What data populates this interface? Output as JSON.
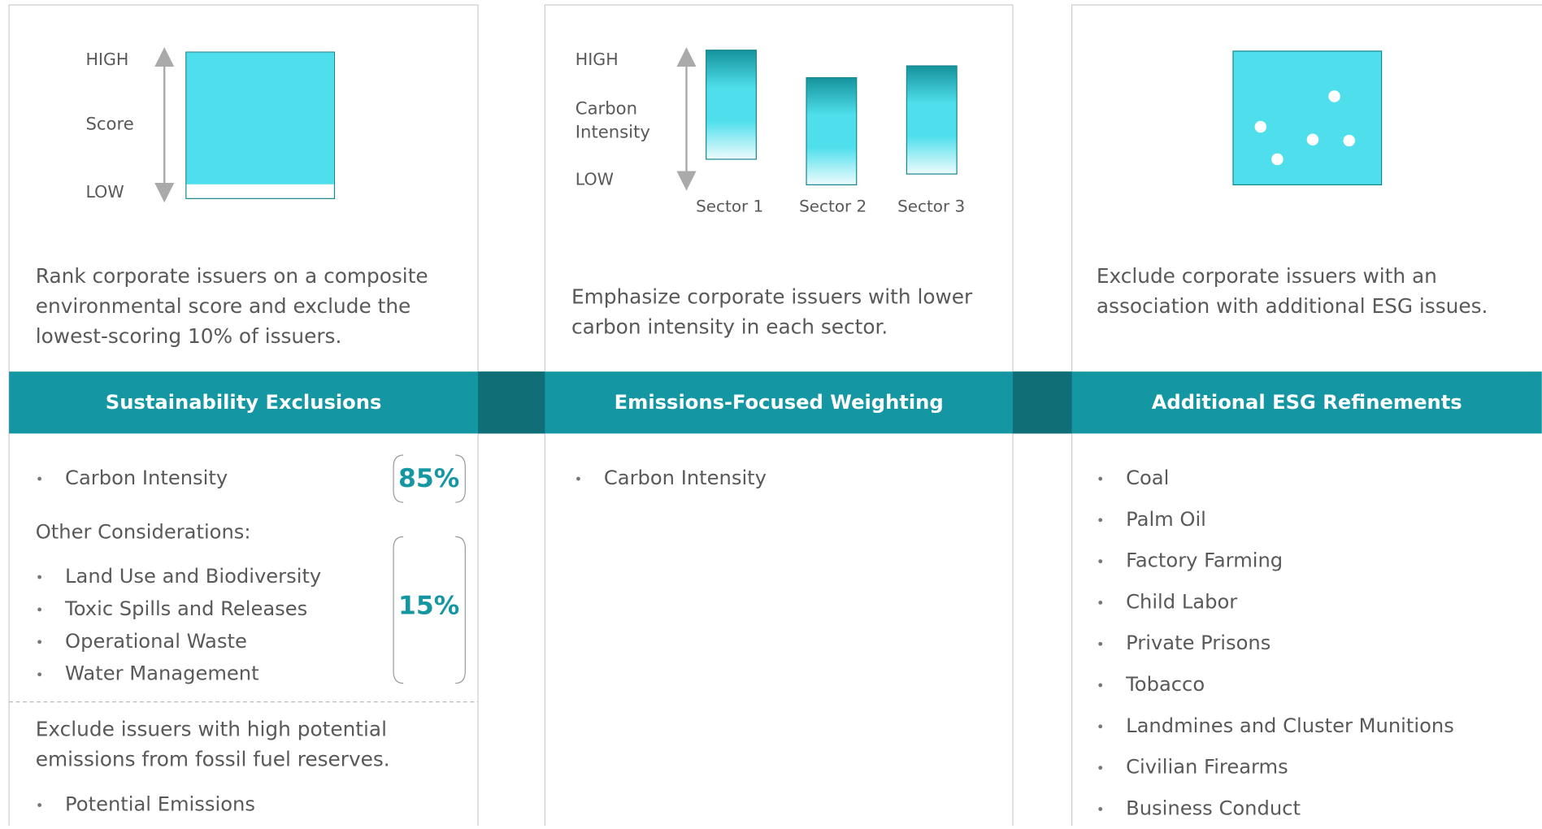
{
  "panels": [
    {
      "chart": {
        "high": "HIGH",
        "axis_label": [
          "Score"
        ],
        "low": "LOW"
      },
      "description": [
        "Rank corporate issuers on a composite",
        "environmental score and exclude the",
        "lowest-scoring 10% of issuers."
      ],
      "title": "Sustainability Exclusions",
      "items": [
        "Carbon Intensity"
      ],
      "items_weight": "85%",
      "other_heading": "Other Considerations:",
      "other_items": [
        "Land Use and Biodiversity",
        "Toxic Spills and Releases",
        "Operational Waste",
        "Water Management"
      ],
      "other_weight": "15%",
      "note": [
        "Exclude issuers with high potential",
        "emissions from fossil fuel reserves."
      ],
      "note_items": [
        "Potential Emissions"
      ]
    },
    {
      "chart": {
        "high": "HIGH",
        "axis_label": [
          "Carbon",
          "Intensity"
        ],
        "low": "LOW",
        "sectors": [
          "Sector 1",
          "Sector 2",
          "Sector 3"
        ]
      },
      "description": [
        "Emphasize corporate issuers with lower",
        "carbon intensity in each sector."
      ],
      "title": "Emissions-Focused Weighting",
      "items": [
        "Carbon Intensity"
      ]
    },
    {
      "description": [
        "Exclude corporate issuers with an",
        "association with additional ESG issues."
      ],
      "title": "Additional ESG Refinements",
      "items": [
        "Coal",
        "Palm Oil",
        "Factory Farming",
        "Child Labor",
        "Private Prisons",
        "Tobacco",
        "Landmines and Cluster Munitions",
        "Civilian Firearms",
        "Business Conduct"
      ]
    }
  ]
}
